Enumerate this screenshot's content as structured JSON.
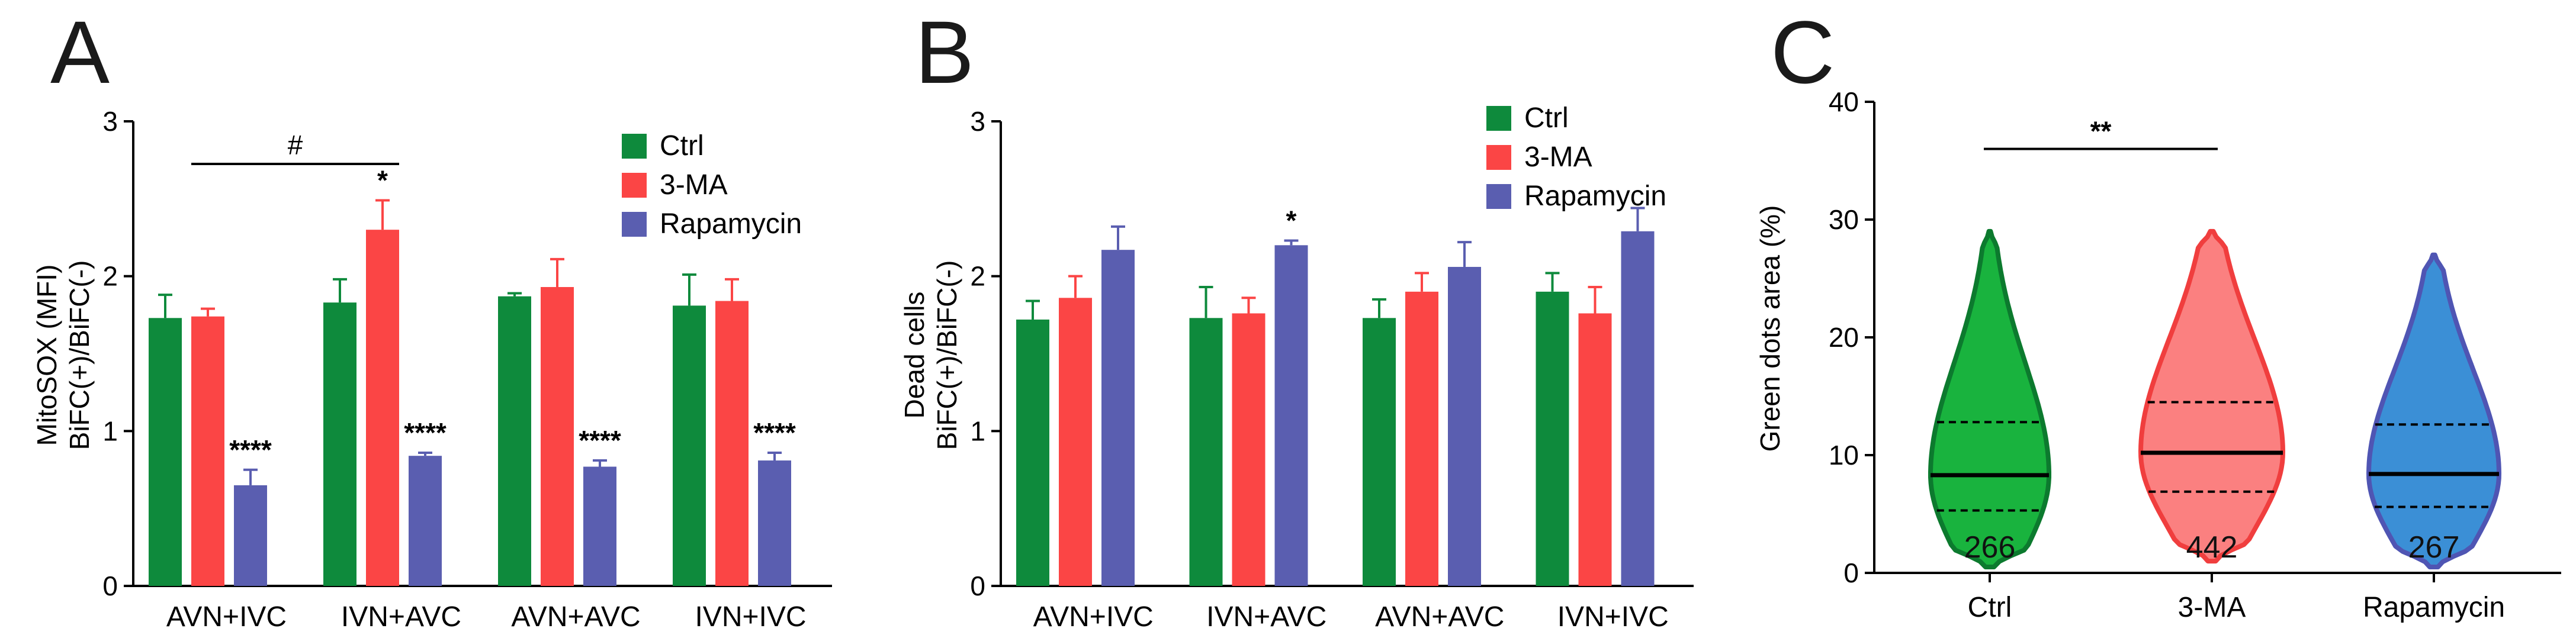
{
  "colors": {
    "ctrl": "#0e8a3c",
    "threema": "#fb4545",
    "rapamycin": "#5a5eb0",
    "violin_ctrl_fill": "#19b33e",
    "violin_ctrl_stroke": "#0c7a2e",
    "violin_3ma_fill": "#fb8080",
    "violin_3ma_stroke": "#f03e3e",
    "violin_rapa_fill": "#3b8fd6",
    "violin_rapa_stroke": "#4f55b3",
    "axis": "#000000"
  },
  "chart_data": [
    {
      "panel": "A",
      "type": "bar",
      "ylabel_line1": "MitoSOX (MFI)",
      "ylabel_line2": "BiFC(+)/BiFC(-)",
      "ylim": [
        0,
        3
      ],
      "yticks": [
        "0",
        "1",
        "2",
        "3"
      ],
      "categories": [
        "AVN+IVC",
        "IVN+AVC",
        "AVN+AVC",
        "IVN+IVC"
      ],
      "series": [
        {
          "name": "Ctrl",
          "values": [
            1.73,
            1.83,
            1.87,
            1.81
          ],
          "errors": [
            0.15,
            0.15,
            0.02,
            0.2
          ],
          "labels": [
            "",
            "",
            "",
            ""
          ]
        },
        {
          "name": "3-MA",
          "values": [
            1.74,
            2.3,
            1.93,
            1.84
          ],
          "errors": [
            0.05,
            0.19,
            0.18,
            0.14
          ],
          "labels": [
            "",
            "*",
            "",
            ""
          ]
        },
        {
          "name": "Rapamycin",
          "values": [
            0.65,
            0.84,
            0.77,
            0.81
          ],
          "errors": [
            0.1,
            0.02,
            0.04,
            0.05
          ],
          "labels": [
            "****",
            "****",
            "****",
            "****"
          ]
        }
      ],
      "bracket": {
        "label": "#",
        "from": [
          0,
          1
        ],
        "to": [
          1,
          1
        ]
      }
    },
    {
      "panel": "B",
      "type": "bar",
      "ylabel_line1": "Dead cells",
      "ylabel_line2": "BiFC(+)/BiFC(-)",
      "ylim": [
        0,
        3
      ],
      "yticks": [
        "0",
        "1",
        "2",
        "3"
      ],
      "categories": [
        "AVN+IVC",
        "IVN+AVC",
        "AVN+AVC",
        "IVN+IVC"
      ],
      "series": [
        {
          "name": "Ctrl",
          "values": [
            1.72,
            1.73,
            1.73,
            1.9
          ],
          "errors": [
            0.12,
            0.2,
            0.12,
            0.12
          ],
          "labels": [
            "",
            "",
            "",
            ""
          ]
        },
        {
          "name": "3-MA",
          "values": [
            1.86,
            1.76,
            1.9,
            1.76
          ],
          "errors": [
            0.14,
            0.1,
            0.12,
            0.17
          ],
          "labels": [
            "",
            "",
            "",
            ""
          ]
        },
        {
          "name": "Rapamycin",
          "values": [
            2.17,
            2.2,
            2.06,
            2.29
          ],
          "errors": [
            0.15,
            0.03,
            0.16,
            0.15
          ],
          "labels": [
            "",
            "*",
            "",
            ""
          ]
        }
      ]
    },
    {
      "panel": "C",
      "type": "violin",
      "ylabel": "Green dots area (%)",
      "ylim": [
        0,
        40
      ],
      "yticks": [
        "0",
        "10",
        "20",
        "30",
        "40"
      ],
      "categories": [
        "Ctrl",
        "3-MA",
        "Rapamycin"
      ],
      "groups": [
        {
          "name": "Ctrl",
          "n": "266",
          "median": 8.3,
          "q1": 5.3,
          "q3": 12.8,
          "min": 0.5,
          "max": 29.0
        },
        {
          "name": "3-MA",
          "n": "442",
          "median": 10.2,
          "q1": 6.9,
          "q3": 14.5,
          "min": 1.0,
          "max": 29.0
        },
        {
          "name": "Rapamycin",
          "n": "267",
          "median": 8.4,
          "q1": 5.6,
          "q3": 12.6,
          "min": 0.5,
          "max": 27.0
        }
      ],
      "bracket": {
        "label": "**",
        "from": 0,
        "to": 1
      }
    }
  ],
  "panels": {
    "a_letter": "A",
    "b_letter": "B",
    "c_letter": "C"
  },
  "legend_a": [
    "Ctrl",
    "3-MA",
    "Rapamycin"
  ],
  "legend_b": [
    "Ctrl",
    "3-MA",
    "Rapamycin"
  ]
}
